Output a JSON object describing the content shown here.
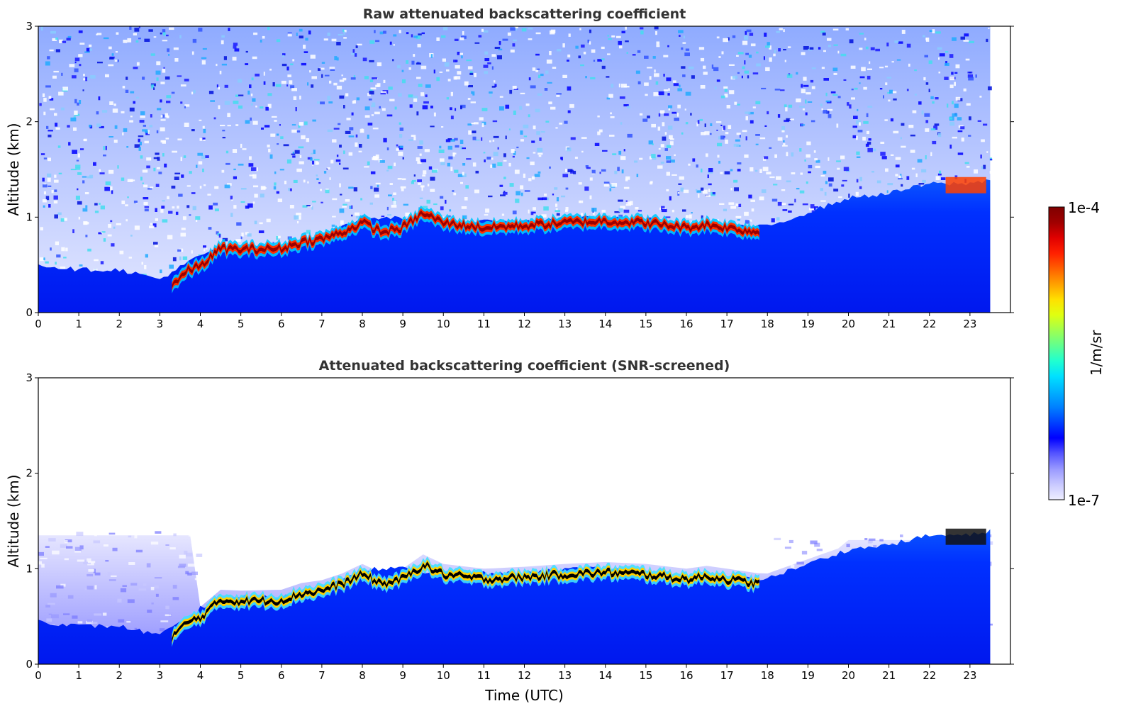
{
  "chart_data": [
    {
      "type": "heatmap",
      "title": "Raw attenuated backscattering coefficient",
      "xlabel": "",
      "ylabel": "Altitude (km)",
      "xlim": [
        0,
        24
      ],
      "ylim": [
        0,
        3
      ],
      "x_ticks": [
        "0",
        "1",
        "2",
        "3",
        "4",
        "5",
        "6",
        "7",
        "8",
        "9",
        "10",
        "11",
        "12",
        "13",
        "14",
        "15",
        "16",
        "17",
        "18",
        "19",
        "20",
        "21",
        "22",
        "23"
      ],
      "y_ticks": [
        "0",
        "1",
        "2",
        "3"
      ],
      "data_end_time": 23.5,
      "layer_top_km": [
        {
          "t": 0,
          "z": 0.5
        },
        {
          "t": 1,
          "z": 0.45
        },
        {
          "t": 2,
          "z": 0.45
        },
        {
          "t": 3,
          "z": 0.35
        },
        {
          "t": 4,
          "z": 0.6
        },
        {
          "t": 5,
          "z": 0.7
        },
        {
          "t": 6,
          "z": 0.7
        },
        {
          "t": 7,
          "z": 0.8
        },
        {
          "t": 8,
          "z": 1.0
        },
        {
          "t": 9,
          "z": 1.0
        },
        {
          "t": 10,
          "z": 0.95
        },
        {
          "t": 11,
          "z": 0.95
        },
        {
          "t": 12,
          "z": 0.95
        },
        {
          "t": 13,
          "z": 1.0
        },
        {
          "t": 14,
          "z": 1.0
        },
        {
          "t": 15,
          "z": 0.95
        },
        {
          "t": 16,
          "z": 0.9
        },
        {
          "t": 17,
          "z": 0.9
        },
        {
          "t": 18,
          "z": 0.9
        },
        {
          "t": 19,
          "z": 1.05
        },
        {
          "t": 20,
          "z": 1.2
        },
        {
          "t": 21,
          "z": 1.25
        },
        {
          "t": 22,
          "z": 1.35
        },
        {
          "t": 23,
          "z": 1.35
        },
        {
          "t": 23.5,
          "z": 1.4
        }
      ],
      "cloud_layer_km": [
        {
          "t": 3.3,
          "z": 0.3
        },
        {
          "t": 3.7,
          "z": 0.45
        },
        {
          "t": 4.0,
          "z": 0.5
        },
        {
          "t": 4.5,
          "z": 0.68
        },
        {
          "t": 5,
          "z": 0.67
        },
        {
          "t": 6,
          "z": 0.68
        },
        {
          "t": 6.5,
          "z": 0.75
        },
        {
          "t": 7,
          "z": 0.78
        },
        {
          "t": 7.5,
          "z": 0.85
        },
        {
          "t": 8,
          "z": 0.95
        },
        {
          "t": 8.5,
          "z": 0.85
        },
        {
          "t": 9,
          "z": 0.9
        },
        {
          "t": 9.5,
          "z": 1.05
        },
        {
          "t": 10,
          "z": 0.95
        },
        {
          "t": 11,
          "z": 0.9
        },
        {
          "t": 12,
          "z": 0.92
        },
        {
          "t": 13,
          "z": 0.95
        },
        {
          "t": 14,
          "z": 0.97
        },
        {
          "t": 15,
          "z": 0.95
        },
        {
          "t": 16,
          "z": 0.9
        },
        {
          "t": 16.5,
          "z": 0.93
        },
        {
          "t": 17,
          "z": 0.9
        },
        {
          "t": 17.8,
          "z": 0.85
        }
      ],
      "upper_layer": {
        "t_start": 22.4,
        "t_end": 23.4,
        "z": 1.3
      }
    },
    {
      "type": "heatmap",
      "title": "Attenuated backscattering coefficient (SNR-screened)",
      "xlabel": "Time (UTC)",
      "ylabel": "Altitude (km)",
      "xlim": [
        0,
        24
      ],
      "ylim": [
        0,
        3
      ],
      "x_ticks": [
        "0",
        "1",
        "2",
        "3",
        "4",
        "5",
        "6",
        "7",
        "8",
        "9",
        "10",
        "11",
        "12",
        "13",
        "14",
        "15",
        "16",
        "17",
        "18",
        "19",
        "20",
        "21",
        "22",
        "23"
      ],
      "y_ticks": [
        "0",
        "1",
        "2",
        "3"
      ]
    }
  ],
  "colorbar": {
    "label": "1/m/sr",
    "max_label": "1e-4",
    "min_label": "1e-7",
    "colors": [
      "#eeeeff",
      "#c8c8ff",
      "#9999ff",
      "#5555ff",
      "#0000ff",
      "#0040ff",
      "#0080ff",
      "#00b0ff",
      "#00e0ff",
      "#20ffd0",
      "#60ff90",
      "#a0ff50",
      "#e0ff10",
      "#ffe000",
      "#ffa000",
      "#ff6000",
      "#ff2000",
      "#e00000",
      "#a00000",
      "#7f0000"
    ]
  }
}
